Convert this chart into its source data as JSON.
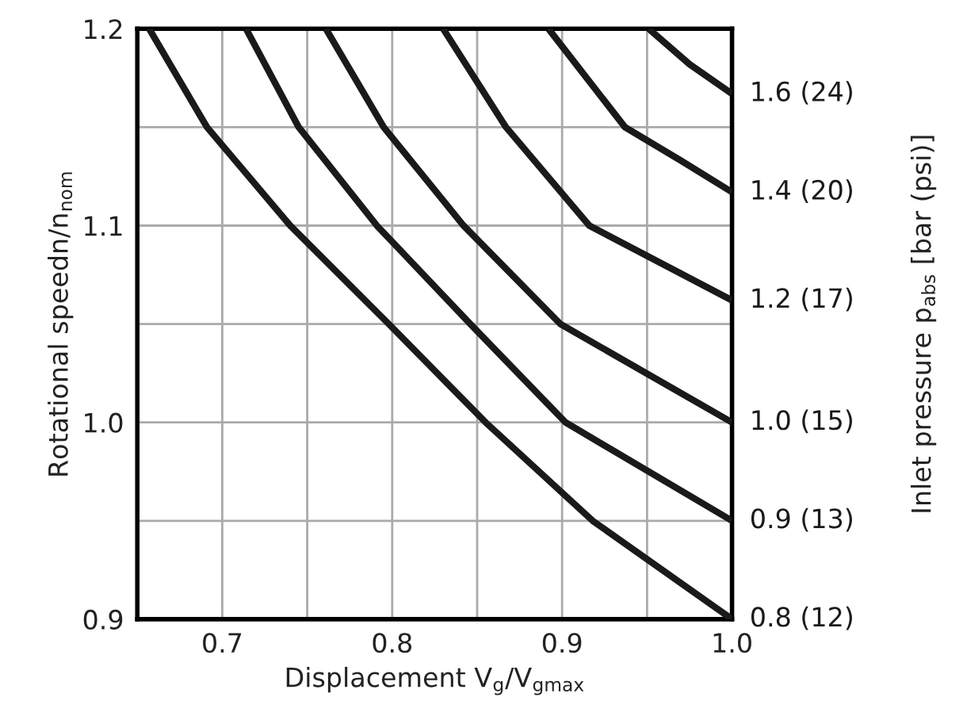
{
  "chart_data": {
    "type": "line",
    "xlabel": "Displacement V$_{g}$/V$_{gmax}$",
    "ylabel": "Rotational speedn/n$_{nom}$",
    "annotations": [
      "Inlet pressure p$_{abs}$ [bar (psi)]"
    ],
    "xlim": [
      0.65,
      1.0
    ],
    "ylim": [
      0.9,
      1.2
    ],
    "xticks": [
      0.7,
      {
        "value": 0.75,
        "label": null
      },
      0.8,
      {
        "value": 0.85,
        "label": null
      },
      0.9,
      {
        "value": 0.95,
        "label": null
      },
      {
        "value": 1.0,
        "label": "1.0"
      }
    ],
    "yticks": [
      0.9,
      {
        "value": 0.95,
        "label": null
      },
      {
        "value": 1.0,
        "label": "1.0"
      },
      {
        "value": 1.05,
        "label": null
      },
      1.1,
      {
        "value": 1.15,
        "label": null
      },
      1.2
    ],
    "grid": true,
    "marker": "none",
    "line_style": "solid",
    "series": [
      {
        "name": "0.8 (12)",
        "color": "#1a1a1a",
        "x": [
          0.657,
          0.691,
          0.74,
          0.798,
          0.855,
          0.918,
          1.0
        ],
        "values": [
          1.2,
          1.15,
          1.1,
          1.05,
          1.0,
          0.95,
          0.9
        ]
      },
      {
        "name": "0.9 (13)",
        "color": "#1a1a1a",
        "x": [
          0.714,
          0.745,
          0.791,
          0.846,
          0.902,
          1.0
        ],
        "values": [
          1.2,
          1.15,
          1.1,
          1.05,
          1.0,
          0.95
        ]
      },
      {
        "name": "1.0 (15)",
        "color": "#1a1a1a",
        "x": [
          0.761,
          0.795,
          0.842,
          0.899,
          1.0
        ],
        "values": [
          1.2,
          1.15,
          1.1,
          1.05,
          1.0
        ]
      },
      {
        "name": "1.2 (17)",
        "color": "#1a1a1a",
        "x": [
          0.83,
          0.867,
          0.916,
          1.0
        ],
        "values": [
          1.2,
          1.15,
          1.1,
          1.062
        ]
      },
      {
        "name": "1.4 (20)",
        "color": "#1a1a1a",
        "x": [
          0.892,
          0.937,
          0.97,
          1.0
        ],
        "values": [
          1.2,
          1.15,
          1.133,
          1.117
        ]
      },
      {
        "name": "1.6 (24)",
        "color": "#1a1a1a",
        "x": [
          0.951,
          0.975,
          1.0
        ],
        "values": [
          1.2,
          1.182,
          1.167
        ]
      }
    ]
  }
}
